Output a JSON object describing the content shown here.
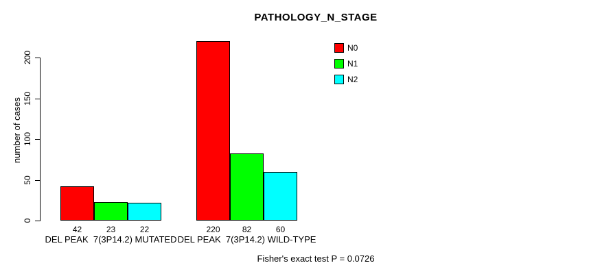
{
  "chart_data": {
    "type": "bar",
    "title": "PATHOLOGY_N_STAGE",
    "ylabel": "number of cases",
    "xlabel": "",
    "yticks": [
      0,
      50,
      100,
      150,
      200
    ],
    "ylim": [
      0,
      224
    ],
    "grid": false,
    "legend_position": "top-right-inside",
    "categories": [
      "DEL PEAK  7(3P14.2) MUTATED",
      "DEL PEAK  7(3P14.2) WILD-TYPE"
    ],
    "series": [
      {
        "name": "N0",
        "color": "#FF0000",
        "values": [
          42,
          220
        ]
      },
      {
        "name": "N1",
        "color": "#00FF00",
        "values": [
          23,
          82
        ]
      },
      {
        "name": "N2",
        "color": "#00FFFF",
        "values": [
          22,
          60
        ]
      }
    ],
    "annotation": "Fisher's exact test P = 0.0726"
  },
  "colors": {
    "background": "#FFFFFF",
    "axis": "#000000",
    "text": "#000000"
  }
}
